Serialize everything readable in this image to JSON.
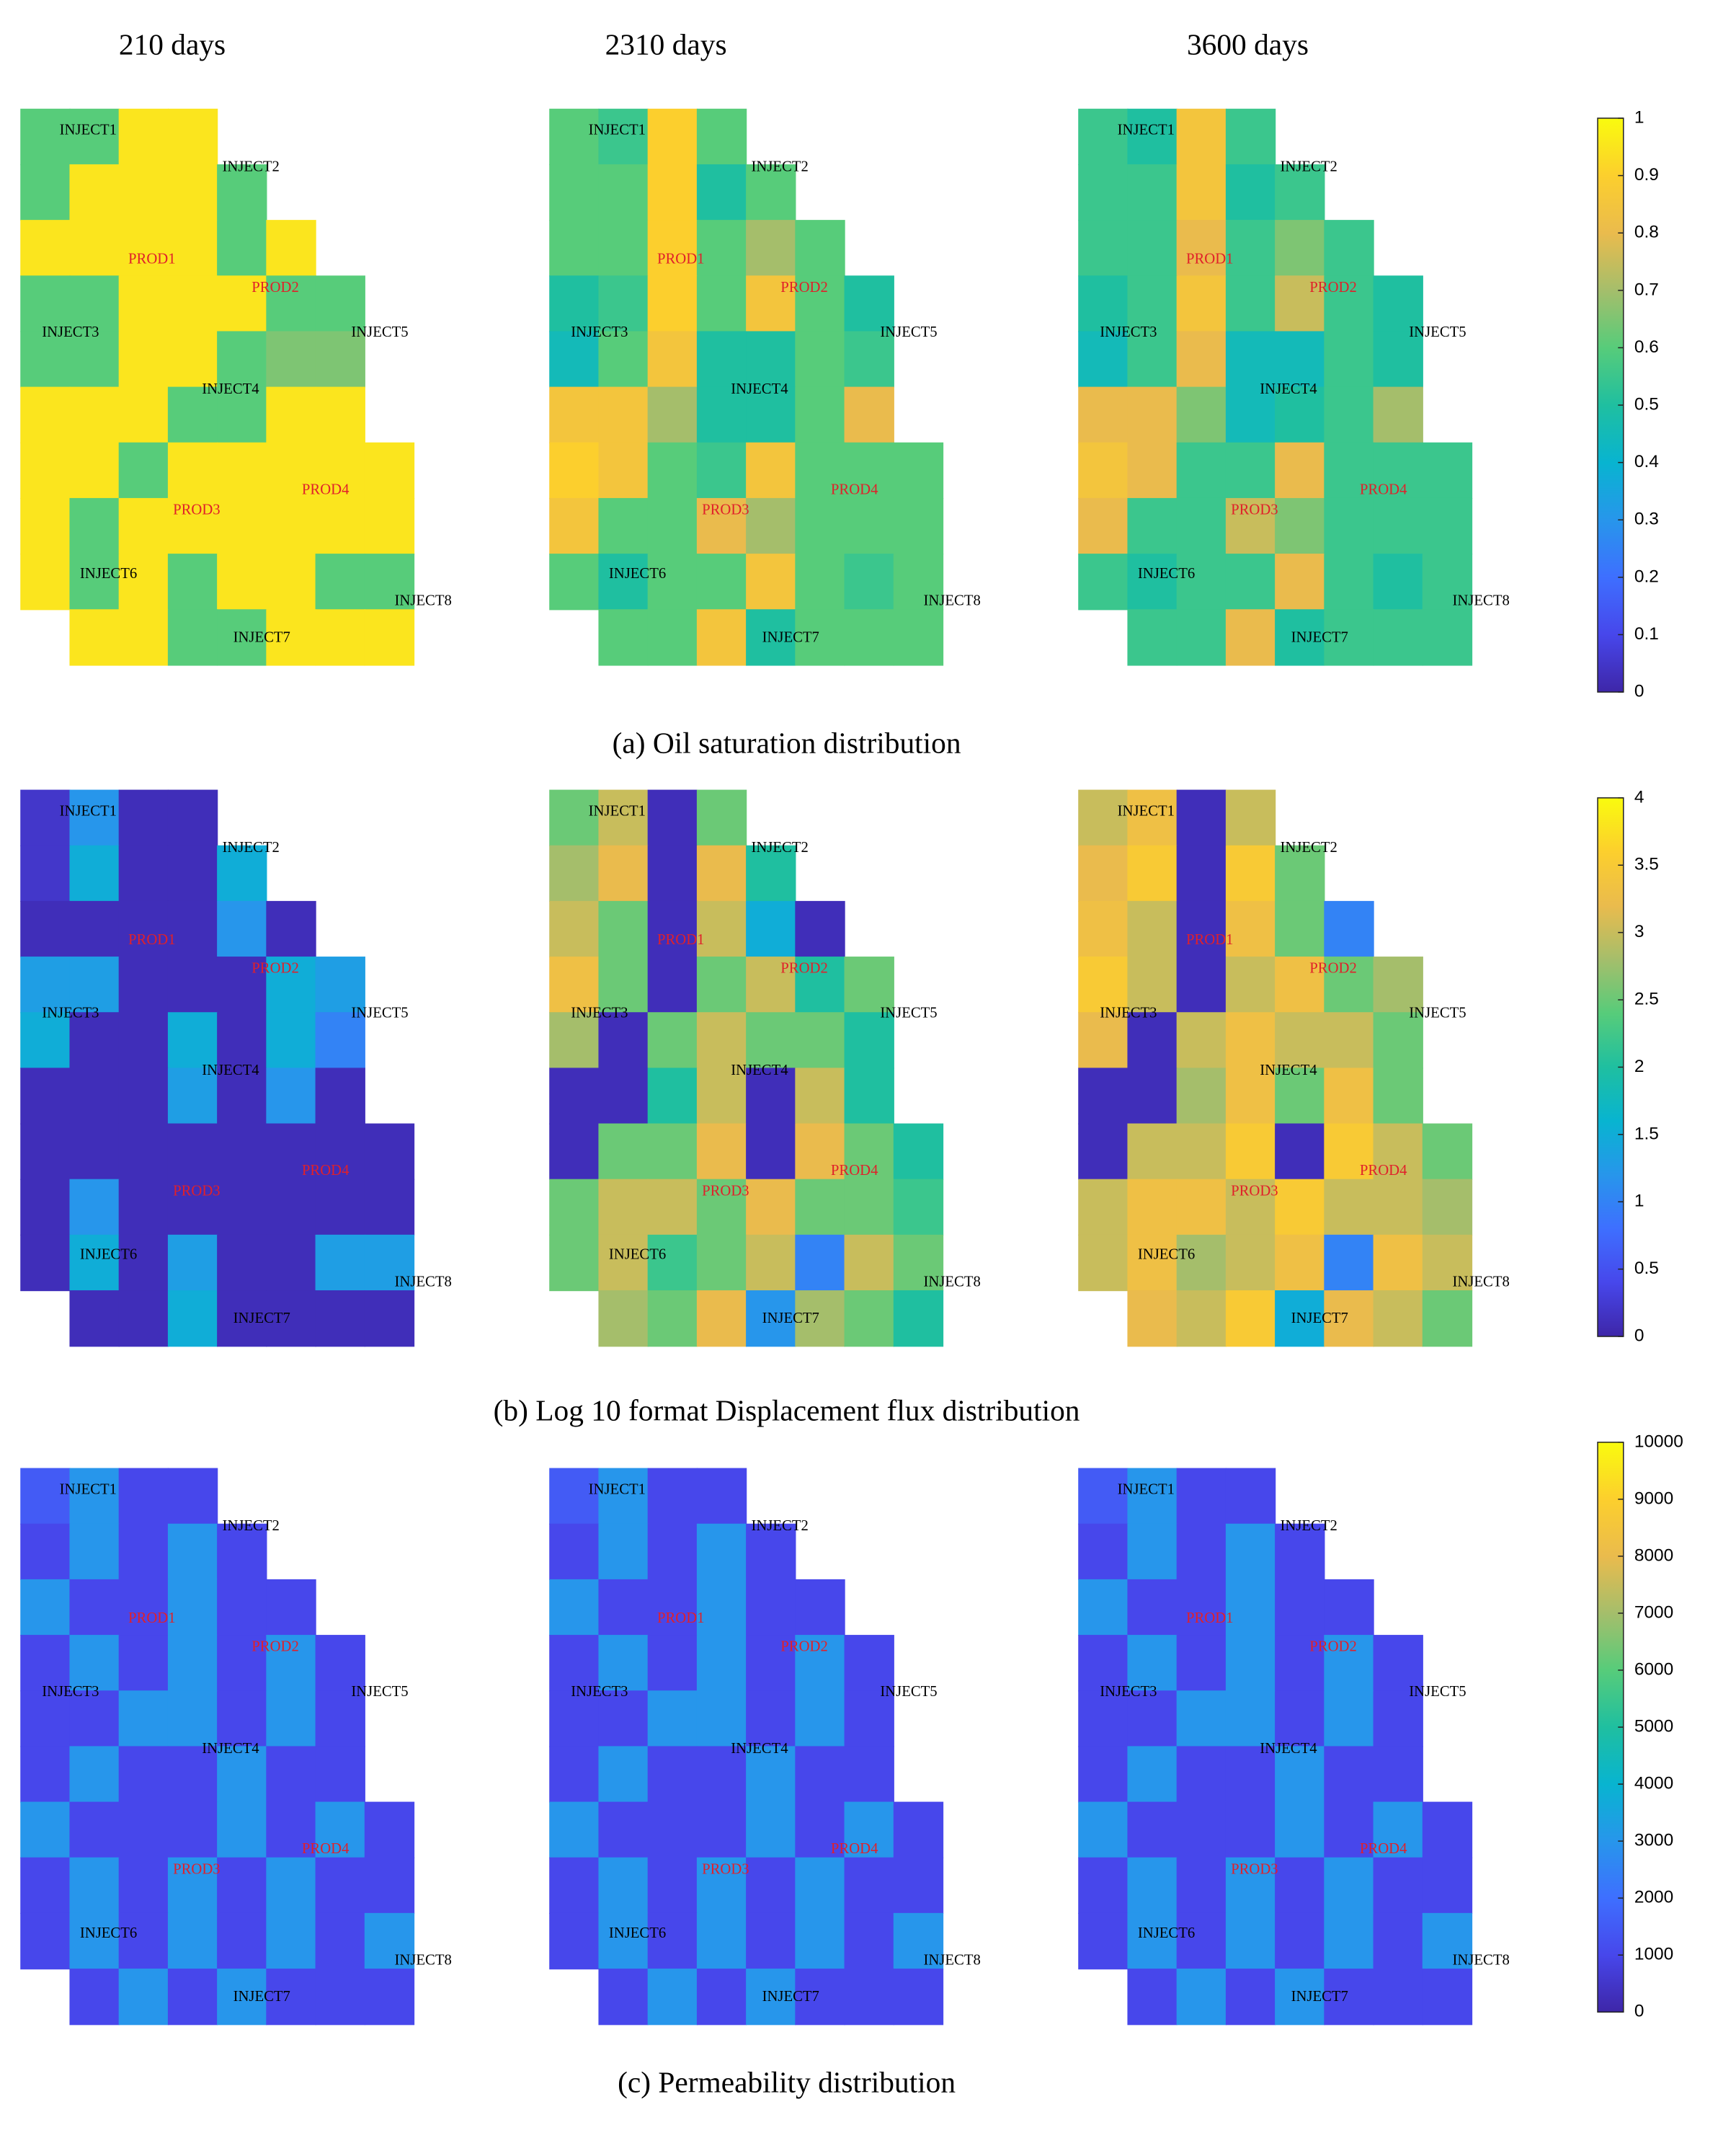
{
  "titles": [
    "210 days",
    "2310 days",
    "3600 days"
  ],
  "wells": [
    {
      "name": "INJECT1",
      "color": "#000000"
    },
    {
      "name": "INJECT2",
      "color": "#000000"
    },
    {
      "name": "PROD1",
      "color": "#e0202a"
    },
    {
      "name": "PROD2",
      "color": "#e0202a"
    },
    {
      "name": "INJECT3",
      "color": "#000000"
    },
    {
      "name": "INJECT5",
      "color": "#000000"
    },
    {
      "name": "INJECT4",
      "color": "#000000"
    },
    {
      "name": "PROD3",
      "color": "#e0202a"
    },
    {
      "name": "PROD4",
      "color": "#e0202a"
    },
    {
      "name": "INJECT6",
      "color": "#000000"
    },
    {
      "name": "INJECT8",
      "color": "#000000"
    },
    {
      "name": "INJECT7",
      "color": "#000000"
    }
  ],
  "chart_data": [
    {
      "type": "heatmap",
      "caption": "(a) Oil saturation distribution",
      "clim": [
        0,
        1
      ],
      "cticks": [
        0,
        0.1,
        0.2,
        0.3,
        0.4,
        0.5,
        0.6,
        0.7,
        0.8,
        0.9,
        1
      ],
      "panels": [
        [
          [
            0.6,
            0.6,
            0.95,
            0.95
          ],
          [
            0.6,
            0.95,
            0.95,
            0.95,
            0.6
          ],
          [
            0.95,
            0.95,
            0.95,
            0.95,
            0.6,
            0.95
          ],
          [
            0.6,
            0.6,
            0.95,
            0.95,
            0.95,
            0.6,
            0.6
          ],
          [
            0.6,
            0.6,
            0.95,
            0.95,
            0.6,
            0.65,
            0.65
          ],
          [
            0.95,
            0.95,
            0.95,
            0.6,
            0.6,
            0.95,
            0.95
          ],
          [
            0.95,
            0.95,
            0.6,
            0.95,
            0.95,
            0.95,
            0.95,
            0.95
          ],
          [
            0.95,
            0.6,
            0.95,
            0.95,
            0.95,
            0.95,
            0.95,
            0.95
          ],
          [
            0.95,
            0.6,
            0.95,
            0.6,
            0.95,
            0.95,
            0.6,
            0.6
          ],
          [
            null,
            0.95,
            0.95,
            0.6,
            0.6,
            0.95,
            0.95,
            0.95
          ]
        ],
        [
          [
            0.6,
            0.55,
            0.9,
            0.6
          ],
          [
            0.6,
            0.6,
            0.9,
            0.5,
            0.6
          ],
          [
            0.6,
            0.6,
            0.9,
            0.6,
            0.7,
            0.6
          ],
          [
            0.5,
            0.55,
            0.9,
            0.6,
            0.85,
            0.6,
            0.5
          ],
          [
            0.45,
            0.6,
            0.85,
            0.5,
            0.5,
            0.6,
            0.55
          ],
          [
            0.85,
            0.85,
            0.7,
            0.5,
            0.5,
            0.6,
            0.8
          ],
          [
            0.9,
            0.85,
            0.6,
            0.55,
            0.85,
            0.6,
            0.6,
            0.6
          ],
          [
            0.85,
            0.6,
            0.6,
            0.8,
            0.7,
            0.6,
            0.6,
            0.6
          ],
          [
            0.6,
            0.5,
            0.6,
            0.6,
            0.85,
            0.6,
            0.55,
            0.6
          ],
          [
            null,
            0.6,
            0.6,
            0.85,
            0.5,
            0.6,
            0.6,
            0.6
          ]
        ],
        [
          [
            0.55,
            0.5,
            0.85,
            0.55
          ],
          [
            0.55,
            0.55,
            0.85,
            0.5,
            0.55
          ],
          [
            0.55,
            0.55,
            0.8,
            0.55,
            0.65,
            0.55
          ],
          [
            0.5,
            0.55,
            0.85,
            0.55,
            0.75,
            0.55,
            0.5
          ],
          [
            0.45,
            0.55,
            0.8,
            0.45,
            0.45,
            0.55,
            0.5
          ],
          [
            0.8,
            0.8,
            0.65,
            0.45,
            0.5,
            0.55,
            0.7
          ],
          [
            0.85,
            0.8,
            0.55,
            0.55,
            0.8,
            0.55,
            0.55,
            0.55
          ],
          [
            0.8,
            0.55,
            0.55,
            0.75,
            0.65,
            0.55,
            0.55,
            0.55
          ],
          [
            0.55,
            0.5,
            0.55,
            0.55,
            0.8,
            0.55,
            0.5,
            0.55
          ],
          [
            null,
            0.55,
            0.55,
            0.8,
            0.5,
            0.55,
            0.55,
            0.55
          ]
        ]
      ]
    },
    {
      "type": "heatmap",
      "caption": "(b) Log 10 format Displacement flux distribution",
      "clim": [
        0,
        4
      ],
      "cticks": [
        0,
        0.5,
        1,
        1.5,
        2,
        2.5,
        3,
        3.5,
        4
      ],
      "panels": [
        [
          [
            0.2,
            1.2,
            0.1,
            0.1
          ],
          [
            0.2,
            1.5,
            0.1,
            0.1,
            1.5
          ],
          [
            0.1,
            0.1,
            0.1,
            0.1,
            1.2,
            0.1
          ],
          [
            1.3,
            1.3,
            0.1,
            0.1,
            0.1,
            1.5,
            1.3
          ],
          [
            1.5,
            0.1,
            0.1,
            1.5,
            0.1,
            1.5,
            1
          ],
          [
            0.1,
            0.1,
            0.1,
            1.3,
            0.1,
            1.2,
            0.1
          ],
          [
            0.1,
            0.1,
            0.1,
            0.1,
            0.1,
            0.1,
            0.1,
            0.1
          ],
          [
            0.1,
            1.2,
            0.1,
            0.1,
            0.1,
            0.1,
            0.1,
            0.1
          ],
          [
            0.1,
            1.5,
            0.1,
            1.3,
            0.1,
            0.1,
            1.3,
            1.3
          ],
          [
            null,
            0.1,
            0.1,
            1.5,
            0.1,
            0.1,
            0.1,
            0.1
          ]
        ],
        [
          [
            2.5,
            3,
            0.1,
            2.5
          ],
          [
            2.8,
            3.2,
            0.1,
            3.2,
            2
          ],
          [
            3,
            2.5,
            0.1,
            3,
            1.5,
            0.1
          ],
          [
            3.3,
            2.5,
            0.1,
            2.5,
            3,
            2,
            2.5
          ],
          [
            2.8,
            0.1,
            2.5,
            3,
            2.5,
            2.5,
            2
          ],
          [
            0.1,
            0.1,
            2,
            3,
            0.1,
            3,
            2
          ],
          [
            0.1,
            2.5,
            2.5,
            3.2,
            0.1,
            3.2,
            2.5,
            2
          ],
          [
            2.5,
            3,
            3,
            2.5,
            3.2,
            2.5,
            2.5,
            2.2
          ],
          [
            2.5,
            3,
            2.2,
            2.5,
            3,
            1,
            3,
            2.5
          ],
          [
            null,
            2.8,
            2.5,
            3.2,
            1.2,
            2.8,
            2.5,
            2
          ]
        ],
        [
          [
            3,
            3.3,
            0.1,
            3
          ],
          [
            3.2,
            3.5,
            0.1,
            3.5,
            2.5
          ],
          [
            3.3,
            3,
            0.1,
            3.3,
            2.5,
            1
          ],
          [
            3.5,
            3,
            0.1,
            3,
            3.3,
            2.5,
            2.8
          ],
          [
            3.2,
            0.1,
            3,
            3.3,
            3,
            3,
            2.5
          ],
          [
            0.1,
            0.1,
            2.8,
            3.3,
            2.5,
            3.3,
            2.5
          ],
          [
            0.1,
            3,
            3,
            3.5,
            0.1,
            3.5,
            3,
            2.5
          ],
          [
            3,
            3.3,
            3.3,
            3,
            3.5,
            3,
            3,
            2.8
          ],
          [
            3,
            3.3,
            2.8,
            3,
            3.3,
            1,
            3.3,
            3
          ],
          [
            null,
            3.2,
            3,
            3.5,
            1.5,
            3.2,
            3,
            2.5
          ]
        ]
      ]
    },
    {
      "type": "heatmap",
      "caption": "(c) Permeability distribution",
      "clim": [
        0,
        10000
      ],
      "cticks": [
        0,
        1000,
        2000,
        3000,
        4000,
        5000,
        6000,
        7000,
        8000,
        9000,
        10000
      ],
      "panels": [
        [
          [
            1500,
            3000,
            1000,
            1000
          ],
          [
            1000,
            3000,
            1000,
            3000,
            1000
          ],
          [
            3000,
            1000,
            1000,
            3000,
            1000,
            1000
          ],
          [
            1000,
            3000,
            1000,
            3000,
            1000,
            3000,
            1000
          ],
          [
            1000,
            1000,
            3000,
            3000,
            1000,
            3000,
            1000
          ],
          [
            1000,
            3000,
            1000,
            1000,
            3000,
            1000,
            1000
          ],
          [
            3000,
            1000,
            1000,
            1000,
            3000,
            1000,
            3000,
            1000
          ],
          [
            1000,
            3000,
            1000,
            3000,
            1000,
            3000,
            1000,
            1000
          ],
          [
            1000,
            3000,
            1000,
            3000,
            1000,
            3000,
            1000,
            3000
          ],
          [
            null,
            1000,
            3000,
            1000,
            3000,
            1000,
            1000,
            1000
          ]
        ],
        [
          [
            1500,
            3000,
            1000,
            1000
          ],
          [
            1000,
            3000,
            1000,
            3000,
            1000
          ],
          [
            3000,
            1000,
            1000,
            3000,
            1000,
            1000
          ],
          [
            1000,
            3000,
            1000,
            3000,
            1000,
            3000,
            1000
          ],
          [
            1000,
            1000,
            3000,
            3000,
            1000,
            3000,
            1000
          ],
          [
            1000,
            3000,
            1000,
            1000,
            3000,
            1000,
            1000
          ],
          [
            3000,
            1000,
            1000,
            1000,
            3000,
            1000,
            3000,
            1000
          ],
          [
            1000,
            3000,
            1000,
            3000,
            1000,
            3000,
            1000,
            1000
          ],
          [
            1000,
            3000,
            1000,
            3000,
            1000,
            3000,
            1000,
            3000
          ],
          [
            null,
            1000,
            3000,
            1000,
            3000,
            1000,
            1000,
            1000
          ]
        ],
        [
          [
            1500,
            3000,
            1000,
            1000
          ],
          [
            1000,
            3000,
            1000,
            3000,
            1000
          ],
          [
            3000,
            1000,
            1000,
            3000,
            1000,
            1000
          ],
          [
            1000,
            3000,
            1000,
            3000,
            1000,
            3000,
            1000
          ],
          [
            1000,
            1000,
            3000,
            3000,
            1000,
            3000,
            1000
          ],
          [
            1000,
            3000,
            1000,
            1000,
            3000,
            1000,
            1000
          ],
          [
            3000,
            1000,
            1000,
            1000,
            3000,
            1000,
            3000,
            1000
          ],
          [
            1000,
            3000,
            1000,
            3000,
            1000,
            3000,
            1000,
            1000
          ],
          [
            1000,
            3000,
            1000,
            3000,
            1000,
            3000,
            1000,
            3000
          ],
          [
            null,
            1000,
            3000,
            1000,
            3000,
            1000,
            1000,
            1000
          ]
        ]
      ]
    }
  ]
}
